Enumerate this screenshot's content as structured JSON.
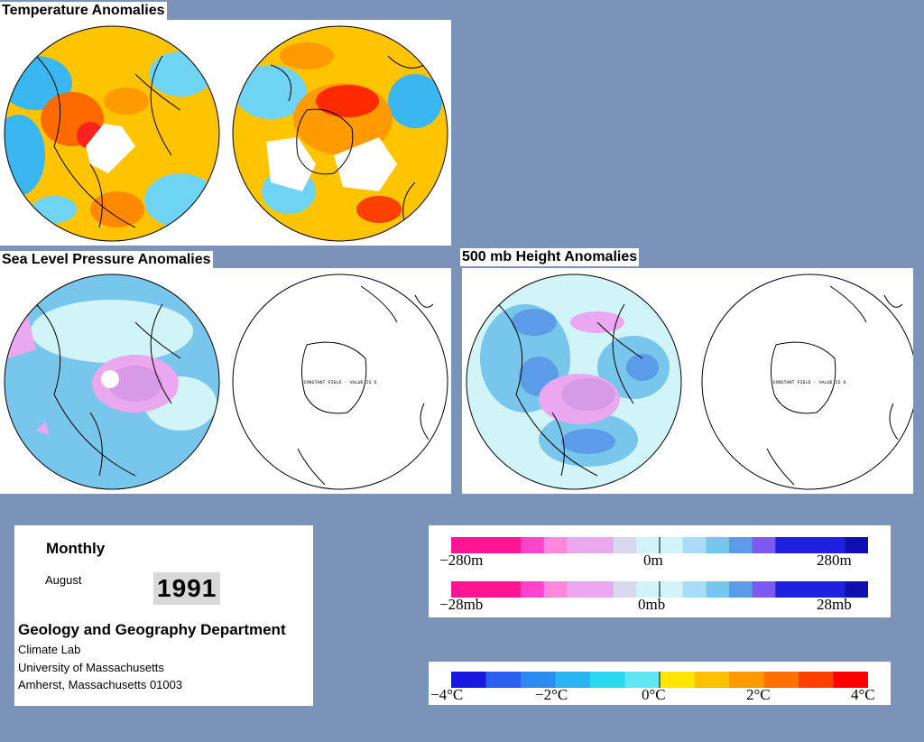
{
  "titles": {
    "temperature": "Temperature Anomalies",
    "slp": "Sea Level Pressure Anomalies",
    "height": "500 mb Height Anomalies"
  },
  "maps": {
    "constant_field_note": "CONSTANT FIELD - VALUE IS 0"
  },
  "info": {
    "period": "Monthly",
    "month": "August",
    "year": "1991",
    "department": "Geology and Geography Department",
    "lab": "Climate Lab",
    "university": "University of Massachusetts",
    "address": "Amherst, Massachusetts 01003"
  },
  "height_scale": {
    "colors": [
      "#ff1493",
      "#ff1493",
      "#ff1493",
      "#ff44cc",
      "#ff88dd",
      "#e9a8f0",
      "#e9a8f0",
      "#d8d8f0",
      "#d0f4f8",
      "#d0f4f8",
      "#a8dcf8",
      "#78c6ec",
      "#5a9ce8",
      "#7a5af0",
      "#2020e0",
      "#2020e0",
      "#2020e0",
      "#1010b0"
    ],
    "min_label": "−280m",
    "mid_label": "0m",
    "max_label": "280m"
  },
  "pressure_scale": {
    "colors": [
      "#ff1493",
      "#ff1493",
      "#ff1493",
      "#ff44cc",
      "#ff88dd",
      "#e9a8f0",
      "#e9a8f0",
      "#d8d8f0",
      "#d0f4f8",
      "#d0f4f8",
      "#a8dcf8",
      "#78c6ec",
      "#5a9ce8",
      "#7a5af0",
      "#2020e0",
      "#2020e0",
      "#2020e0",
      "#1010b0"
    ],
    "min_label": "−28mb",
    "mid_label": "0mb",
    "max_label": "28mb"
  },
  "temperature_scale": {
    "colors": [
      "#1818e0",
      "#2a60f0",
      "#2a8cf0",
      "#2ab4f0",
      "#2ad8f0",
      "#60e8f0",
      "#ffe600",
      "#ffc000",
      "#ff9a00",
      "#ff7000",
      "#ff4000",
      "#ff0000"
    ],
    "labels": [
      "−4°C",
      "−2°C",
      "0°C",
      "2°C",
      "4°C"
    ]
  }
}
